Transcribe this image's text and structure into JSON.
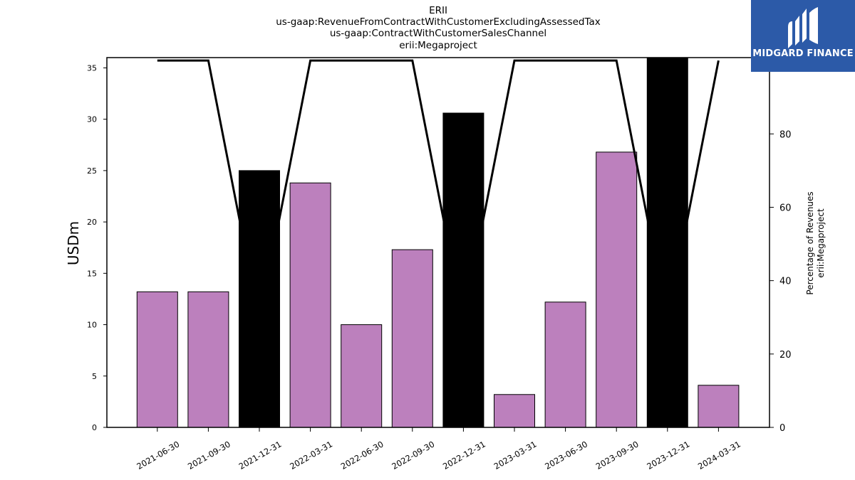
{
  "chart_data": {
    "type": "bar",
    "title_lines": [
      "ERII",
      "us-gaap:RevenueFromContractWithCustomerExcludingAssessedTax",
      "us-gaap:ContractWithCustomerSalesChannel",
      "erii:Megaproject"
    ],
    "categories": [
      "2021-06-30",
      "2021-09-30",
      "2021-12-31",
      "2022-03-31",
      "2022-06-30",
      "2022-09-30",
      "2022-12-31",
      "2023-03-31",
      "2023-06-30",
      "2023-09-30",
      "2023-12-31",
      "2024-03-31"
    ],
    "series": [
      {
        "kind": "bar",
        "axis": "left",
        "values": [
          13.2,
          13.2,
          25.0,
          23.8,
          10.0,
          17.3,
          30.6,
          3.2,
          12.2,
          26.8,
          36.0,
          4.1
        ],
        "colors": [
          "#bc80bd",
          "#bc80bd",
          "#000000",
          "#bc80bd",
          "#bc80bd",
          "#bc80bd",
          "#000000",
          "#bc80bd",
          "#bc80bd",
          "#bc80bd",
          "#000000",
          "#bc80bd"
        ]
      },
      {
        "kind": "line",
        "axis": "right",
        "color": "#000000",
        "values": [
          100,
          100,
          29,
          100,
          100,
          100,
          29,
          100,
          100,
          100,
          29,
          100
        ]
      }
    ],
    "ylabel": "USDm",
    "y2label_lines": [
      "Percentage of Revenues",
      "erii:Megaproject"
    ],
    "ylim": [
      0,
      36
    ],
    "y2lim": [
      0,
      100.8
    ],
    "yticks": [
      0,
      5,
      10,
      15,
      20,
      25,
      30,
      35
    ],
    "y2ticks": [
      0,
      20,
      40,
      60,
      80,
      100
    ],
    "grid": false,
    "legend": "none"
  },
  "logo": {
    "text": "MIDGARD FINANCE",
    "background": "#2c5aa8",
    "icon": "midgard-logo-icon"
  }
}
